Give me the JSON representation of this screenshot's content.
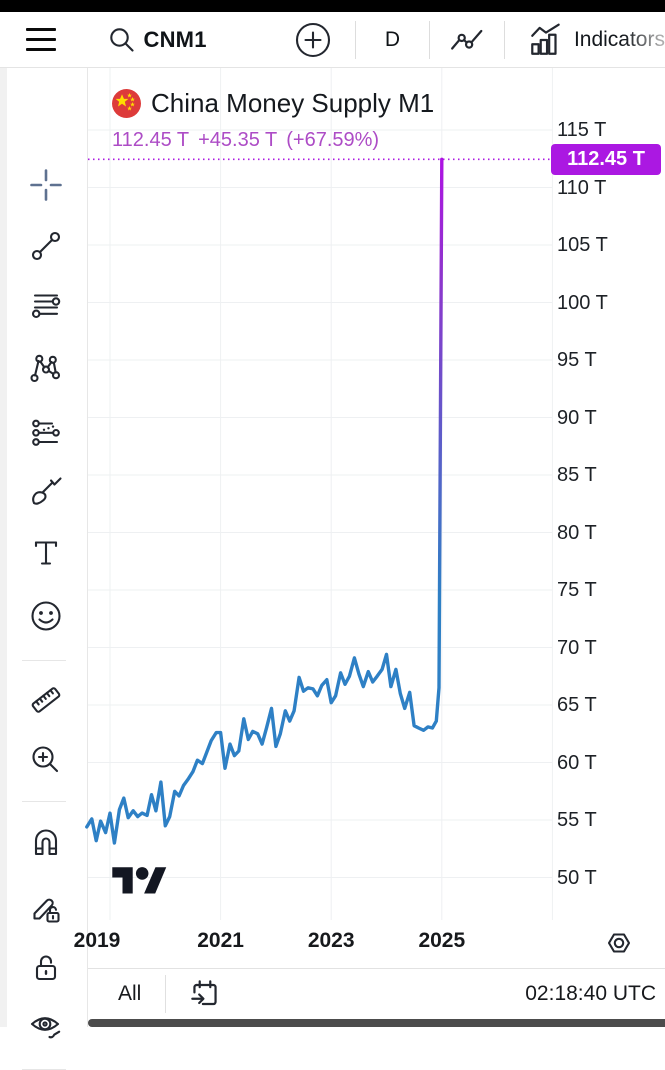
{
  "header": {
    "symbol": "CNM1",
    "interval": "D",
    "indicators_label": "Indicators",
    "icons": [
      "hamburger-menu-icon",
      "search-icon",
      "plus-circle-icon",
      "chart-type-icon",
      "indicators-icon"
    ]
  },
  "drawing_toolbar": {
    "icons": [
      "crosshair-icon",
      "trend-line-icon",
      "horizontal-lines-icon",
      "xabcd-pattern-icon",
      "projection-icon",
      "brush-icon",
      "text-icon",
      "emoji-icon",
      "ruler-icon",
      "zoom-in-icon",
      "magnet-icon",
      "drawing-mode-lock-icon",
      "lock-icon",
      "hide-drawings-icon"
    ]
  },
  "chart": {
    "flag_icon": "china-flag-icon",
    "title": "China Money Supply M1",
    "price_value": "112.45 T",
    "price_change": "+45.35 T",
    "price_change_pct": "(+67.59%)",
    "price_badge": "112.45 T",
    "watermark_icon": "tradingview-logo"
  },
  "bottom_bar": {
    "range_label": "All",
    "goto_date_icon": "go-to-date-icon",
    "time": "02:18:40 UTC",
    "axis_settings_icon": "axis-settings-icon"
  },
  "colors": {
    "accent_purple": "#ab18e2",
    "price_text_purple": "#ad4cc6",
    "line_blue": "#2e80c5",
    "spike_purple": "#ae13e3",
    "grid": "#eef0f2",
    "flag_red": "#dd3b3a",
    "flag_yellow": "#ffde00"
  },
  "chart_data": {
    "type": "line",
    "title": "China Money Supply M1",
    "unit": "T",
    "interval": "D",
    "last_value": 112.45,
    "change": 45.35,
    "change_pct": 67.59,
    "ylim": [
      48.5,
      117
    ],
    "xlim": [
      2018.58,
      2027.0
    ],
    "grid": true,
    "y_ticks": [
      115,
      110,
      105,
      100,
      95,
      90,
      85,
      80,
      75,
      70,
      65,
      60,
      55,
      50
    ],
    "y_tick_labels": [
      "115 T",
      "110 T",
      "105 T",
      "100 T",
      "95 T",
      "90 T",
      "85 T",
      "80 T",
      "75 T",
      "70 T",
      "65 T",
      "60 T",
      "55 T",
      "50 T"
    ],
    "x_ticks": [
      2019,
      2021,
      2023,
      2025
    ],
    "x_tick_labels": [
      "2019",
      "2021",
      "2023",
      "2025"
    ],
    "points": [
      [
        2018.58,
        54.4
      ],
      [
        2018.67,
        55.1
      ],
      [
        2018.75,
        53.2
      ],
      [
        2018.83,
        54.9
      ],
      [
        2018.92,
        53.9
      ],
      [
        2019.0,
        55.6
      ],
      [
        2019.08,
        53.0
      ],
      [
        2019.17,
        55.9
      ],
      [
        2019.25,
        56.9
      ],
      [
        2019.33,
        55.2
      ],
      [
        2019.42,
        55.8
      ],
      [
        2019.5,
        55.3
      ],
      [
        2019.58,
        55.6
      ],
      [
        2019.67,
        55.4
      ],
      [
        2019.75,
        57.2
      ],
      [
        2019.83,
        55.8
      ],
      [
        2019.92,
        58.3
      ],
      [
        2020.0,
        54.5
      ],
      [
        2020.08,
        55.3
      ],
      [
        2020.17,
        57.5
      ],
      [
        2020.25,
        57.1
      ],
      [
        2020.33,
        58.0
      ],
      [
        2020.42,
        58.6
      ],
      [
        2020.5,
        59.2
      ],
      [
        2020.58,
        60.2
      ],
      [
        2020.67,
        59.9
      ],
      [
        2020.75,
        60.9
      ],
      [
        2020.83,
        61.9
      ],
      [
        2020.92,
        62.6
      ],
      [
        2021.0,
        62.6
      ],
      [
        2021.08,
        59.5
      ],
      [
        2021.17,
        61.6
      ],
      [
        2021.25,
        60.6
      ],
      [
        2021.33,
        61.0
      ],
      [
        2021.42,
        63.8
      ],
      [
        2021.5,
        62.0
      ],
      [
        2021.58,
        62.7
      ],
      [
        2021.67,
        62.5
      ],
      [
        2021.75,
        61.6
      ],
      [
        2021.83,
        63.0
      ],
      [
        2021.92,
        64.7
      ],
      [
        2022.0,
        61.4
      ],
      [
        2022.08,
        62.5
      ],
      [
        2022.17,
        64.5
      ],
      [
        2022.25,
        63.6
      ],
      [
        2022.33,
        64.5
      ],
      [
        2022.42,
        67.4
      ],
      [
        2022.5,
        66.2
      ],
      [
        2022.58,
        66.5
      ],
      [
        2022.67,
        66.4
      ],
      [
        2022.75,
        65.8
      ],
      [
        2022.83,
        66.7
      ],
      [
        2022.92,
        67.2
      ],
      [
        2023.0,
        65.2
      ],
      [
        2023.08,
        65.8
      ],
      [
        2023.17,
        67.8
      ],
      [
        2023.25,
        66.8
      ],
      [
        2023.33,
        67.5
      ],
      [
        2023.42,
        69.1
      ],
      [
        2023.5,
        67.7
      ],
      [
        2023.58,
        66.6
      ],
      [
        2023.67,
        67.9
      ],
      [
        2023.75,
        67.0
      ],
      [
        2023.83,
        67.5
      ],
      [
        2023.92,
        68.1
      ],
      [
        2024.0,
        69.4
      ],
      [
        2024.08,
        66.6
      ],
      [
        2024.17,
        68.1
      ],
      [
        2024.25,
        66.0
      ],
      [
        2024.33,
        64.7
      ],
      [
        2024.42,
        66.1
      ],
      [
        2024.5,
        63.2
      ],
      [
        2024.58,
        63.0
      ],
      [
        2024.67,
        62.8
      ],
      [
        2024.75,
        63.1
      ],
      [
        2024.83,
        63.0
      ],
      [
        2024.9,
        63.6
      ],
      [
        2024.95,
        66.5
      ],
      [
        2025.0,
        112.45
      ]
    ]
  }
}
